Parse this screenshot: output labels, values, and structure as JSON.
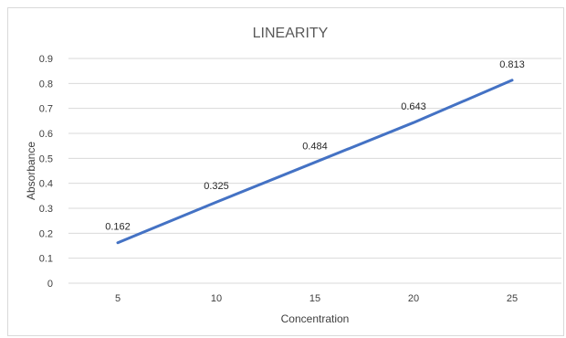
{
  "chart_data": {
    "type": "line",
    "title": "LINEARITY",
    "xlabel": "Concentration",
    "ylabel": "Absorbance",
    "categories": [
      "5",
      "10",
      "15",
      "20",
      "25"
    ],
    "series": [
      {
        "values": [
          0.162,
          0.325,
          0.484,
          0.643,
          0.813
        ],
        "color": "#4472c4"
      }
    ],
    "data_labels": [
      "0.162",
      "0.325",
      "0.484",
      "0.643",
      "0.813"
    ],
    "ylim": [
      0,
      0.9
    ],
    "yticks": [
      "0",
      "0.1",
      "0.2",
      "0.3",
      "0.4",
      "0.5",
      "0.6",
      "0.7",
      "0.8",
      "0.9"
    ],
    "grid": true,
    "legend": "none"
  }
}
